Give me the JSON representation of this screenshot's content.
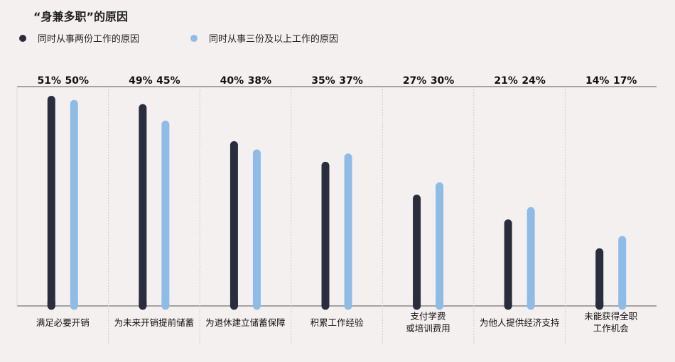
{
  "title": "“身兼多职”的原因",
  "colors": {
    "series1": "#2a2d3e",
    "series2": "#8fbce6",
    "axis": "#555555",
    "grid": "#cccccc"
  },
  "chart_data": {
    "type": "bar",
    "title": "“身兼多职”的原因",
    "legend_position": "top-left",
    "ylim": [
      0,
      55
    ],
    "grid": "vertical dashed separators",
    "categories": [
      "满足必要开销",
      "为未来开销提前储蓄",
      "为退休建立储蓄保障",
      "积累工作经验",
      "支付学费\n或培训费用",
      "为他人提供经济支持",
      "未能获得全职\n工作机会"
    ],
    "series": [
      {
        "name": "同时从事两份工作的原因",
        "values": [
          51,
          49,
          40,
          35,
          27,
          21,
          14
        ],
        "labels": [
          "51%",
          "49%",
          "40%",
          "35%",
          "27%",
          "21%",
          "14%"
        ]
      },
      {
        "name": "同时从事三份及以上工作的原因",
        "values": [
          50,
          45,
          38,
          37,
          30,
          24,
          17
        ],
        "labels": [
          "50%",
          "45%",
          "38%",
          "37%",
          "30%",
          "24%",
          "17%"
        ]
      }
    ]
  }
}
